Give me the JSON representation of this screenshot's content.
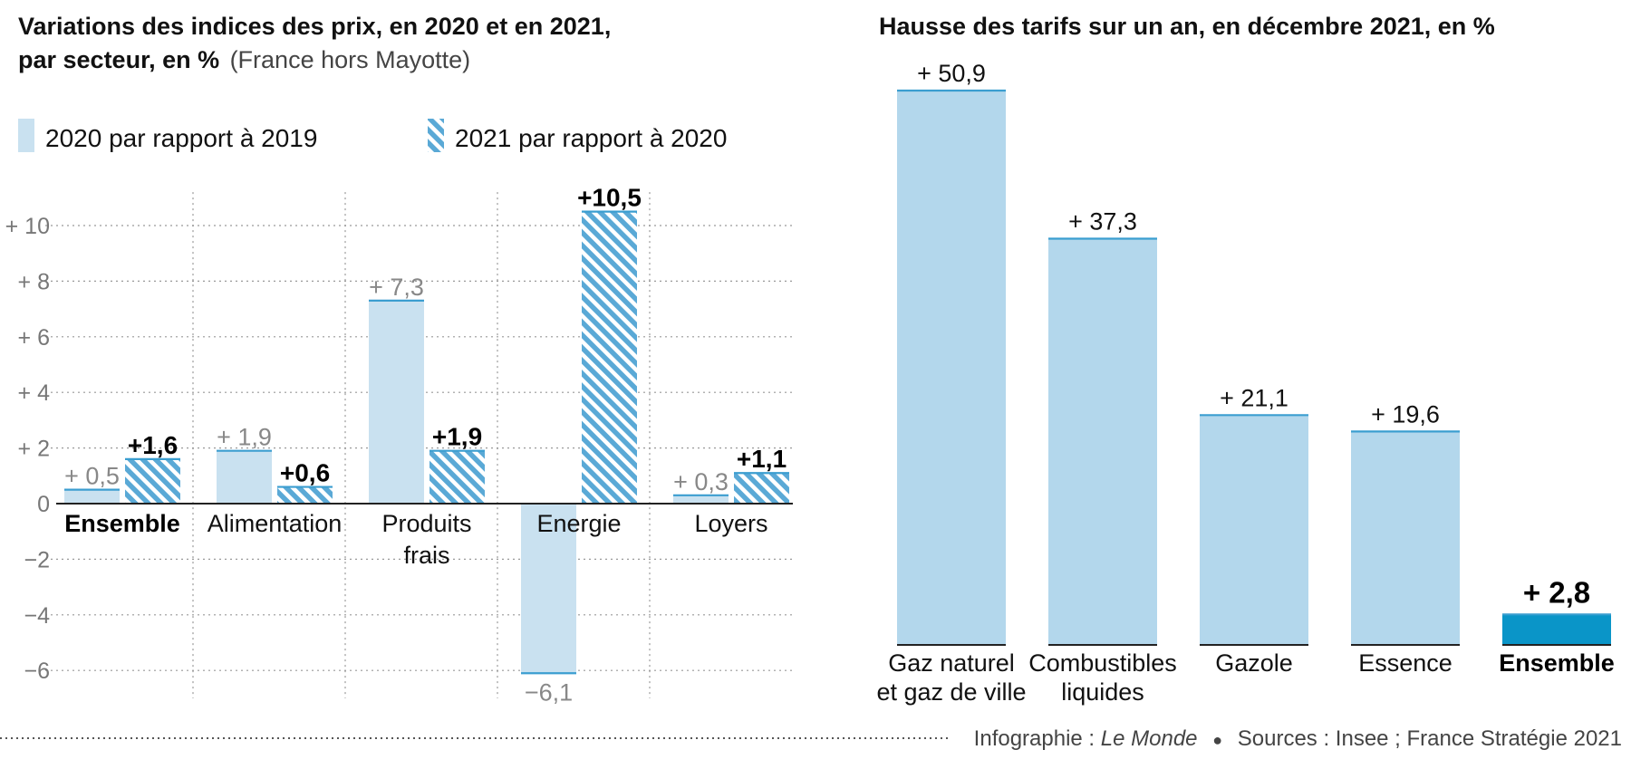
{
  "colors": {
    "light_blue": "#c9e1f0",
    "light_blue_edge": "#3b9ed0",
    "hatch_blue": "#5aa9d6",
    "right_bar": "#b3d7ec",
    "highlight": "#0a95c8",
    "grid": "#999999"
  },
  "chart_data": [
    {
      "type": "bar",
      "title_bold_line1": "Variations des indices des prix, en 2020 et en 2021,",
      "title_bold_line2": "par secteur, en %",
      "title_rest": "(France hors Mayotte)",
      "categories": [
        "Ensemble",
        "Alimentation",
        "Produits frais",
        "Energie",
        "Loyers"
      ],
      "category_lines": [
        [
          "Ensemble"
        ],
        [
          "Alimentation"
        ],
        [
          "Produits",
          "frais"
        ],
        [
          "Energie"
        ],
        [
          "Loyers"
        ]
      ],
      "bold_category": "Ensemble",
      "series": [
        {
          "name": "2020 par rapport à 2019",
          "values": [
            0.5,
            1.9,
            7.3,
            -6.1,
            0.3
          ],
          "labels": [
            "+ 0,5",
            "+ 1,9",
            "+ 7,3",
            "−6,1",
            "+ 0,3"
          ],
          "pattern": "solid"
        },
        {
          "name": "2021 par rapport à 2020",
          "values": [
            1.6,
            0.6,
            1.9,
            10.5,
            1.1
          ],
          "labels": [
            "+1,6",
            "+0,6",
            "+1,9",
            "+10,5",
            "+1,1"
          ],
          "pattern": "hatched"
        }
      ],
      "yticks": [
        {
          "value": 10,
          "label": "+ 10"
        },
        {
          "value": 8,
          "label": "+ 8"
        },
        {
          "value": 6,
          "label": "+ 6"
        },
        {
          "value": 4,
          "label": "+ 4"
        },
        {
          "value": 2,
          "label": "+ 2"
        },
        {
          "value": 0,
          "label": "0"
        },
        {
          "value": -2,
          "label": "−2"
        },
        {
          "value": -4,
          "label": "−4"
        },
        {
          "value": -6,
          "label": "−6"
        }
      ],
      "ylim": [
        -7,
        11
      ],
      "grid": true,
      "legend_position": "top-left"
    },
    {
      "type": "bar",
      "title": "Hausse des tarifs sur un an, en décembre 2021, en %",
      "categories": [
        "Gaz naturel et gaz de ville",
        "Combustibles liquides",
        "Gazole",
        "Essence",
        "Ensemble"
      ],
      "category_lines": [
        [
          "Gaz naturel",
          "et gaz de ville"
        ],
        [
          "Combustibles",
          "liquides"
        ],
        [
          "Gazole"
        ],
        [
          "Essence"
        ],
        [
          "Ensemble"
        ]
      ],
      "values": [
        50.9,
        37.3,
        21.1,
        19.6,
        2.8
      ],
      "labels": [
        "+ 50,9",
        "+ 37,3",
        "+ 21,1",
        "+ 19,6",
        "+ 2,8"
      ],
      "highlight": "Ensemble",
      "ylim": [
        0,
        50.9
      ]
    }
  ],
  "footer": {
    "prefix": "Infographie : ",
    "publication": "Le Monde",
    "bullet": "●",
    "sources": "Sources : Insee ; France Stratégie 2021"
  }
}
